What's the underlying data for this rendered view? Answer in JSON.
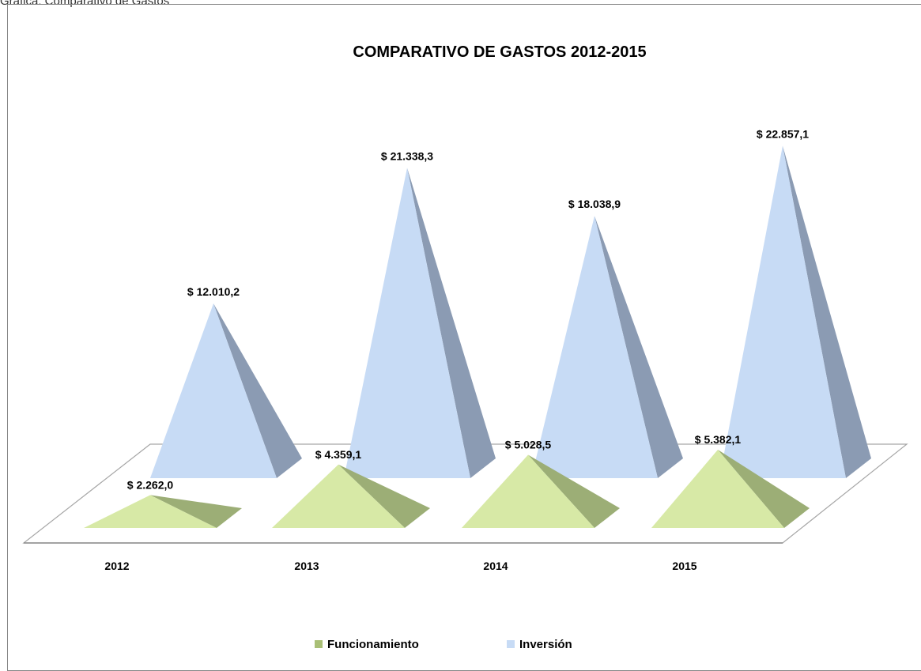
{
  "caption": "Gráfica: Comparativo de Gastos",
  "chart_data": {
    "type": "bar",
    "shape": "pyramid-3d",
    "title": "COMPARATIVO DE GASTOS 2012-2015",
    "categories": [
      "2012",
      "2013",
      "2014",
      "2015"
    ],
    "series": [
      {
        "name": "Funcionamiento",
        "color": "#d7e9a6",
        "values": [
          2262.0,
          4359.1,
          5028.5,
          5382.1
        ],
        "labels": [
          "$ 2.262,0",
          "$ 4.359,1",
          "$ 5.028,5",
          "$ 5.382,1"
        ]
      },
      {
        "name": "Inversión",
        "color": "#c7dbf5",
        "values": [
          12010.2,
          21338.3,
          18038.9,
          22857.1
        ],
        "labels": [
          "$ 12.010,2",
          "$ 21.338,3",
          "$ 18.038,9",
          "$ 22.857,1"
        ]
      }
    ],
    "legend": "bottom",
    "grid": false
  }
}
